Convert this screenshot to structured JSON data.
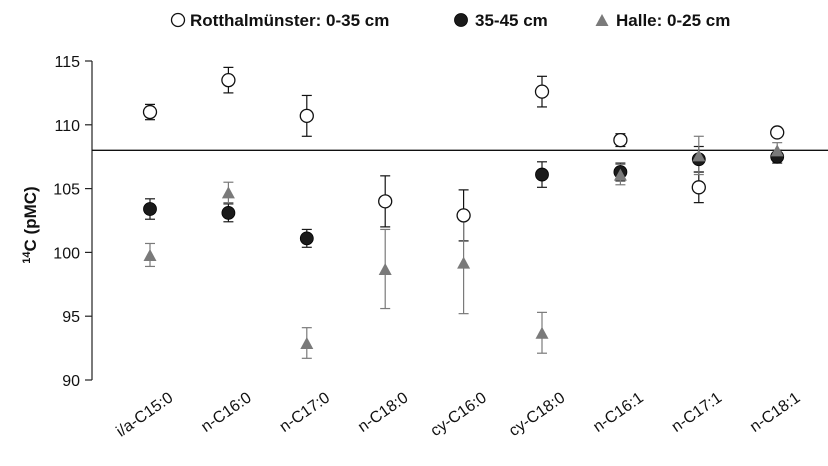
{
  "chart_data": {
    "type": "scatter",
    "title": "",
    "xlabel": "",
    "ylabel": "C (pMC)",
    "ylabel_superscript": "14",
    "ylim": [
      90,
      115
    ],
    "yticks": [
      90,
      95,
      100,
      105,
      110,
      115
    ],
    "reference_line": 108,
    "grid": false,
    "legend_position": "top",
    "categories": [
      "i/a-C15:0",
      "n-C16:0",
      "n-C17:0",
      "n-C18:0",
      "cy-C16:0",
      "cy-C18:0",
      "n-C16:1",
      "n-C17:1",
      "n-C18:1"
    ],
    "series": [
      {
        "name": "Rotthalmünster: 0-35 cm",
        "marker": "open-circle",
        "color": "#111111",
        "values": [
          111.0,
          113.5,
          110.7,
          104.0,
          102.9,
          112.6,
          108.8,
          105.1,
          109.4
        ],
        "errors": [
          0.6,
          1.0,
          1.6,
          2.0,
          2.0,
          1.2,
          0.5,
          1.2,
          0.3
        ]
      },
      {
        "name": "35-45 cm",
        "marker": "filled-circle",
        "color": "#1a1a1a",
        "values": [
          103.4,
          103.1,
          101.1,
          null,
          null,
          106.1,
          106.3,
          107.3,
          107.5
        ],
        "errors": [
          0.8,
          0.7,
          0.7,
          null,
          null,
          1.0,
          0.7,
          1.0,
          0.5
        ]
      },
      {
        "name": "Halle: 0-25 cm",
        "marker": "triangle",
        "color": "#7a7a7a",
        "values": [
          99.8,
          104.7,
          92.9,
          98.7,
          99.2,
          93.7,
          106.1,
          107.6,
          108.0
        ],
        "errors": [
          0.9,
          0.8,
          1.2,
          3.1,
          4.0,
          1.6,
          0.8,
          1.5,
          0.6
        ]
      }
    ]
  }
}
